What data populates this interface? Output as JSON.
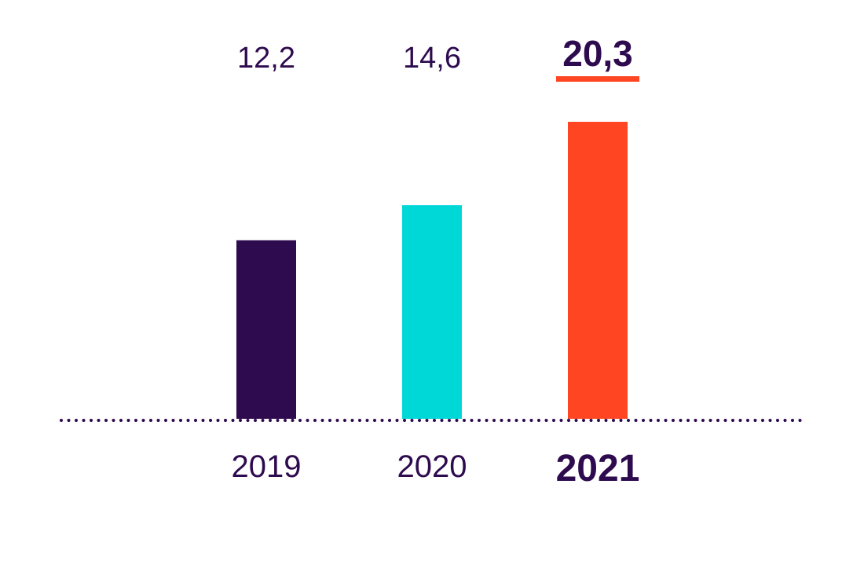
{
  "chart_data": {
    "type": "bar",
    "categories": [
      "2019",
      "2020",
      "2021"
    ],
    "values": [
      12.2,
      14.6,
      20.3
    ],
    "value_labels": [
      "12,2",
      "14,6",
      "20,3"
    ],
    "highlight_index": 2,
    "ylim": [
      0,
      20.3
    ],
    "grid": false,
    "baseline_style": "dotted",
    "colors": {
      "bars": [
        "#2e0a4e",
        "#00d7d7",
        "#ff4521"
      ],
      "text": "#2e0a4e",
      "baseline": "#2e0a4e",
      "highlight_underline": "#ff4521"
    }
  }
}
